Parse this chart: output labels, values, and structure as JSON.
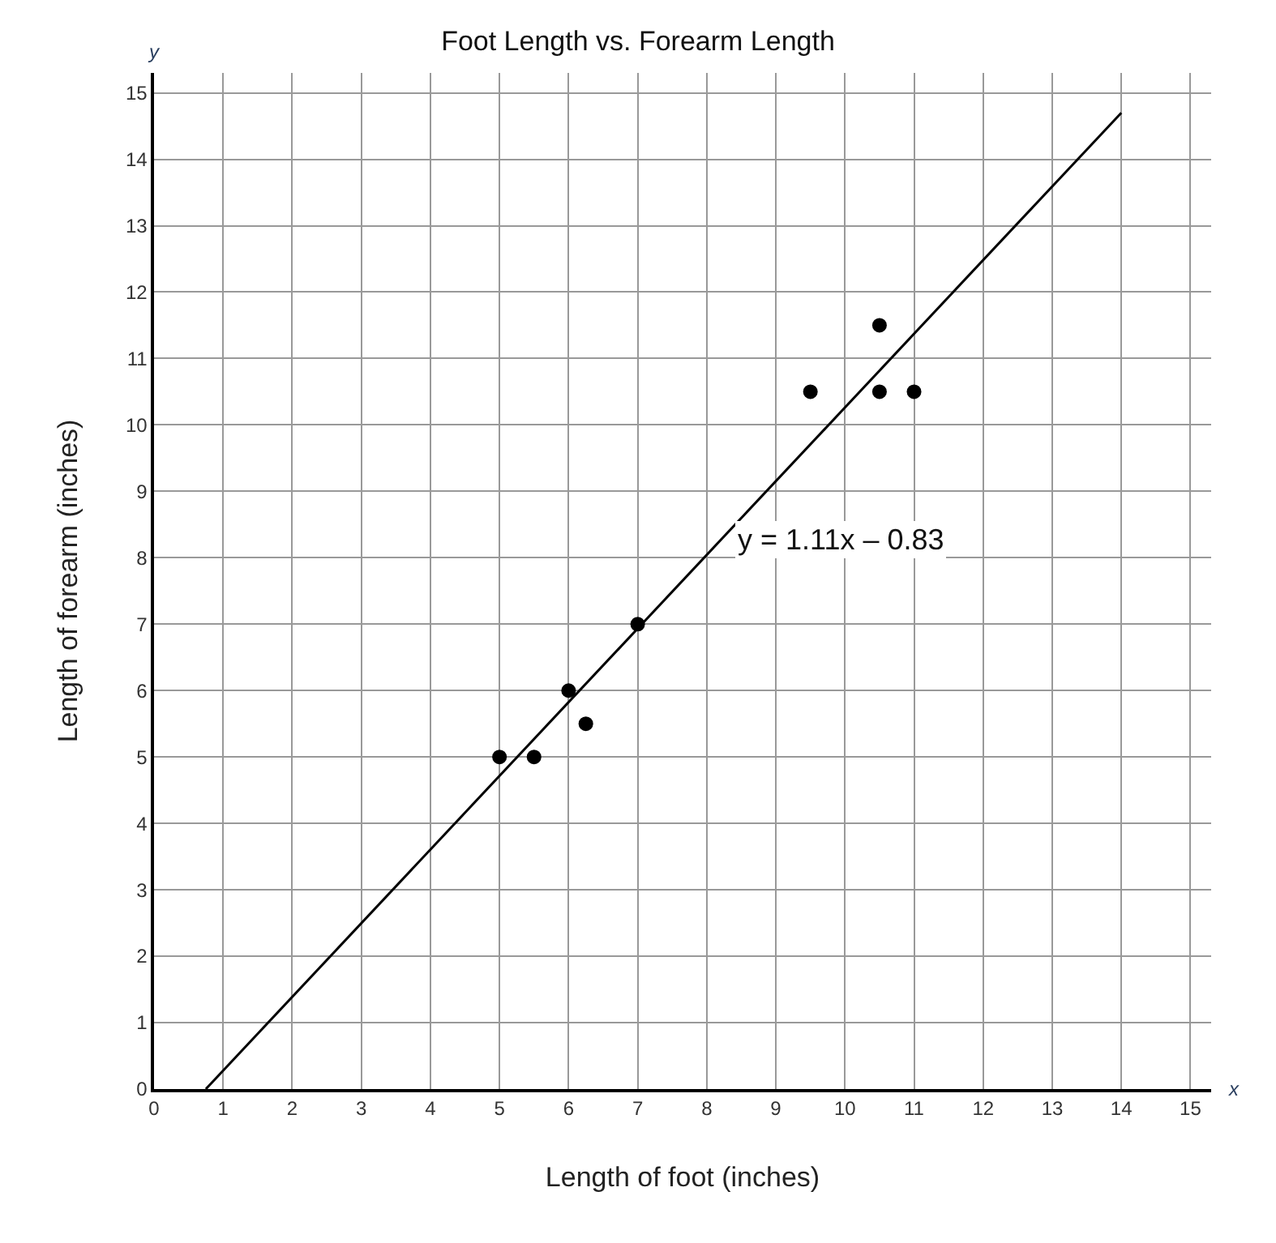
{
  "chart_data": {
    "type": "scatter",
    "title": "Foot Length vs. Forearm Length",
    "xlabel": "Length of foot (inches)",
    "ylabel": "Length of forearm (inches)",
    "x": [
      5,
      5.5,
      6,
      6.25,
      7,
      9.5,
      10.5,
      10.5,
      11
    ],
    "series": [
      {
        "color": "#000000",
        "marker": "circle",
        "values": [
          5,
          5,
          6,
          5.5,
          7,
          10.5,
          11.5,
          10.5,
          10.5
        ]
      },
      {
        "type": "line",
        "color": "#000000",
        "marker": "none",
        "line_style": "solid",
        "x": [
          0.75,
          14
        ],
        "values": [
          0,
          14.7
        ]
      }
    ],
    "annotations": [
      "x",
      "y",
      "y = 1.11x – 0.83"
    ],
    "xlim": [
      0,
      15.3
    ],
    "ylim": [
      0,
      15.3
    ],
    "xticks": [
      0,
      1,
      2,
      3,
      4,
      5,
      6,
      7,
      8,
      9,
      10,
      11,
      12,
      13,
      14,
      15
    ],
    "yticks": [
      0,
      1,
      2,
      3,
      4,
      5,
      6,
      7,
      8,
      9,
      10,
      11,
      12,
      13,
      14,
      15
    ],
    "grid": true,
    "legend": false
  }
}
